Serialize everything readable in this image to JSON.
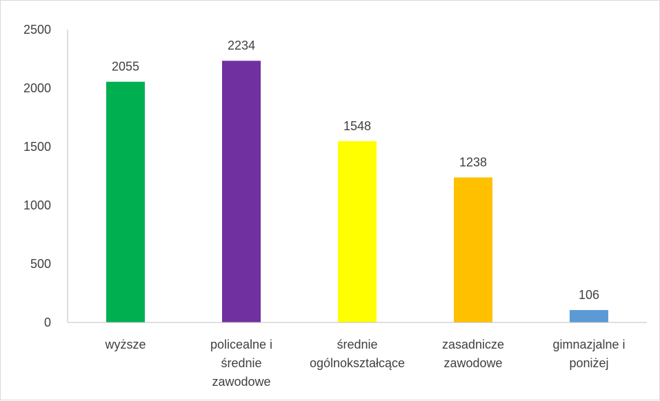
{
  "chart_data": {
    "type": "bar",
    "title": "",
    "xlabel": "",
    "ylabel": "",
    "ylim": [
      0,
      2500
    ],
    "yticks": [
      0,
      500,
      1000,
      1500,
      2000,
      2500
    ],
    "grid": false,
    "legend": "none",
    "categories": [
      "wyższe",
      "policealne i średnie zawodowe",
      "średnie ogólnokształcące",
      "zasadnicze zawodowe",
      "gimnazjalne i poniżej"
    ],
    "category_lines": [
      [
        "wyższe"
      ],
      [
        "policealne i",
        "średnie",
        "zawodowe"
      ],
      [
        "średnie",
        "ogólnokształcące"
      ],
      [
        "zasadnicze",
        "zawodowe"
      ],
      [
        "gimnazjalne i",
        "poniżej"
      ]
    ],
    "values": [
      2055,
      2234,
      1548,
      1238,
      106
    ],
    "colors": [
      "#00b050",
      "#7030a0",
      "#ffff00",
      "#ffc000",
      "#5b9bd5"
    ],
    "axis_color": "#bfbfbf",
    "text_color": "#404040"
  }
}
